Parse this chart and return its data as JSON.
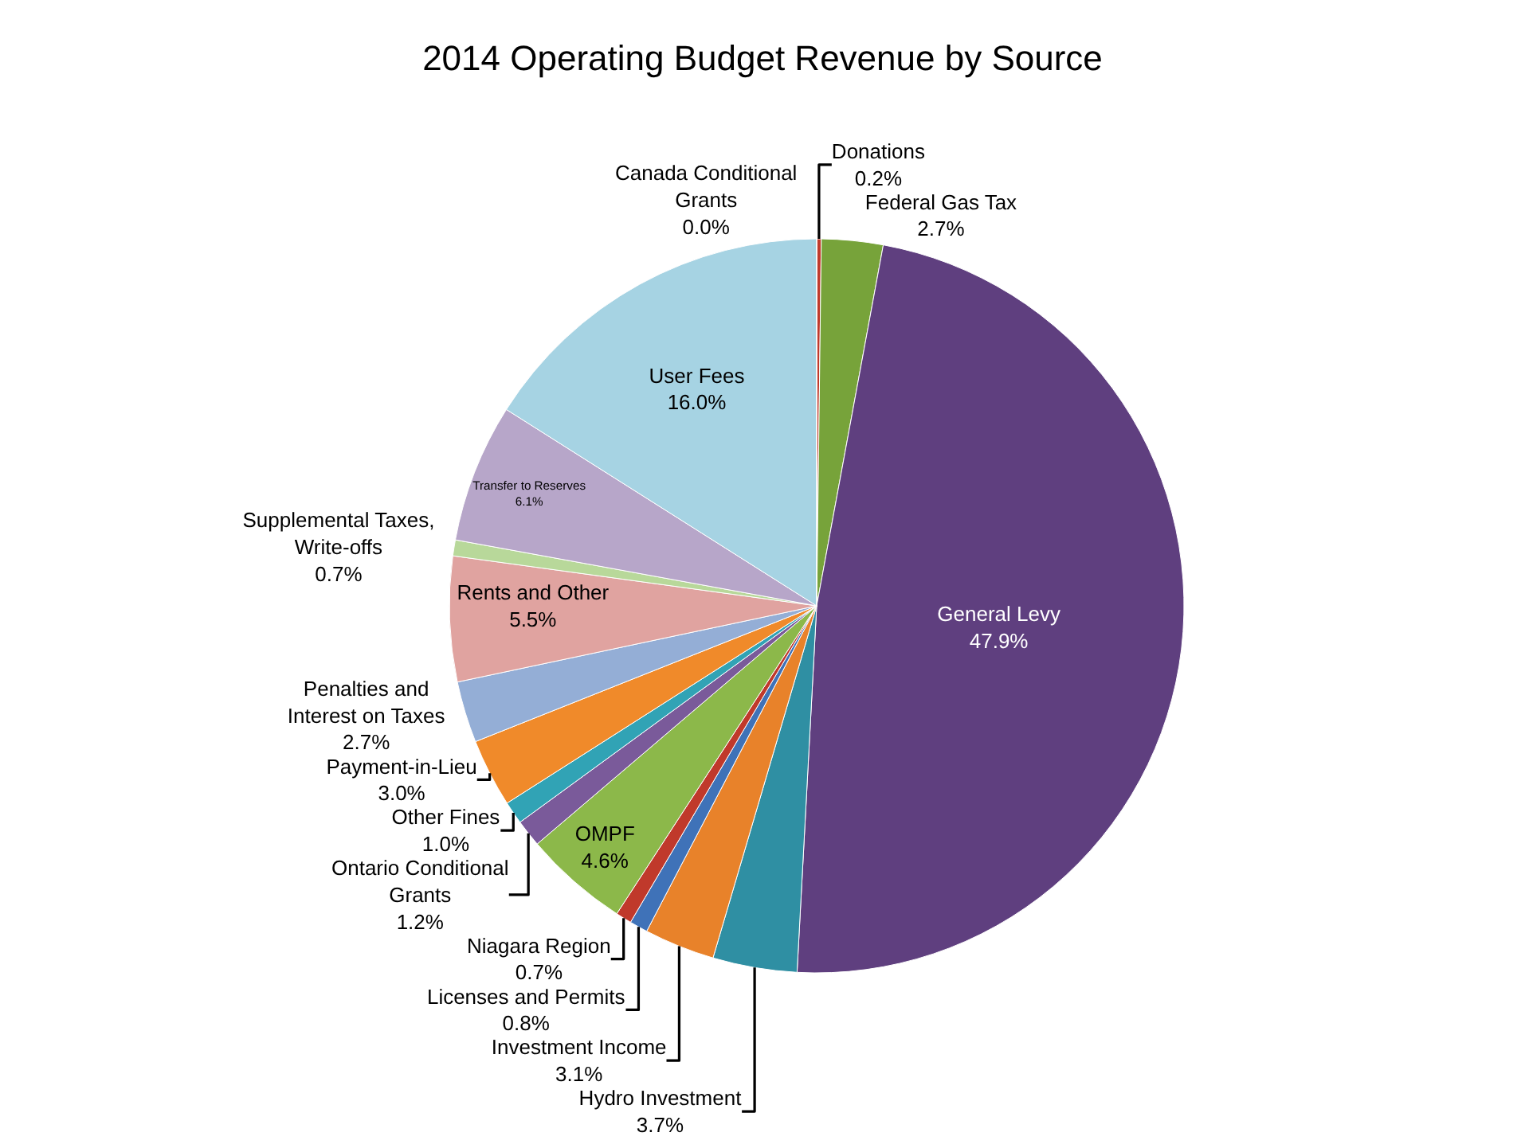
{
  "chart_data": {
    "type": "pie",
    "title": "2014 Operating Budget Revenue by Source",
    "categories": [
      "Donations",
      "Federal Gas Tax",
      "General Levy",
      "Hydro Investment",
      "Investment Income",
      "Licenses and Permits",
      "Niagara Region",
      "OMPF",
      "Ontario Conditional Grants",
      "Other Fines",
      "Payment-in-Lieu",
      "Penalties and Interest on Taxes",
      "Rents and Other",
      "Supplemental Taxes, Write-offs",
      "Transfer to Reserves",
      "User Fees",
      "Canada Conditional Grants"
    ],
    "values": [
      0.2,
      2.7,
      47.9,
      3.7,
      3.1,
      0.8,
      0.7,
      4.6,
      1.2,
      1.0,
      3.0,
      2.7,
      5.5,
      0.7,
      6.1,
      16.0,
      0.0
    ],
    "value_labels": [
      "0.2%",
      "2.7%",
      "47.9%",
      "3.7%",
      "3.1%",
      "0.8%",
      "0.7%",
      "4.6%",
      "1.2%",
      "1.0%",
      "3.0%",
      "2.7%",
      "5.5%",
      "0.7%",
      "6.1%",
      "16.0%",
      "0.0%"
    ],
    "colors": [
      "#c0392b",
      "#77a33a",
      "#5f3f7f",
      "#2f8fa3",
      "#e8822a",
      "#3f72b8",
      "#c0392b",
      "#8cb84a",
      "#7a5a9a",
      "#31a3b5",
      "#f08a2a",
      "#94aed6",
      "#e0a3a0",
      "#b8d89a",
      "#b7a6c9",
      "#a6d3e3",
      "#b8d3e8"
    ],
    "legend": false
  }
}
